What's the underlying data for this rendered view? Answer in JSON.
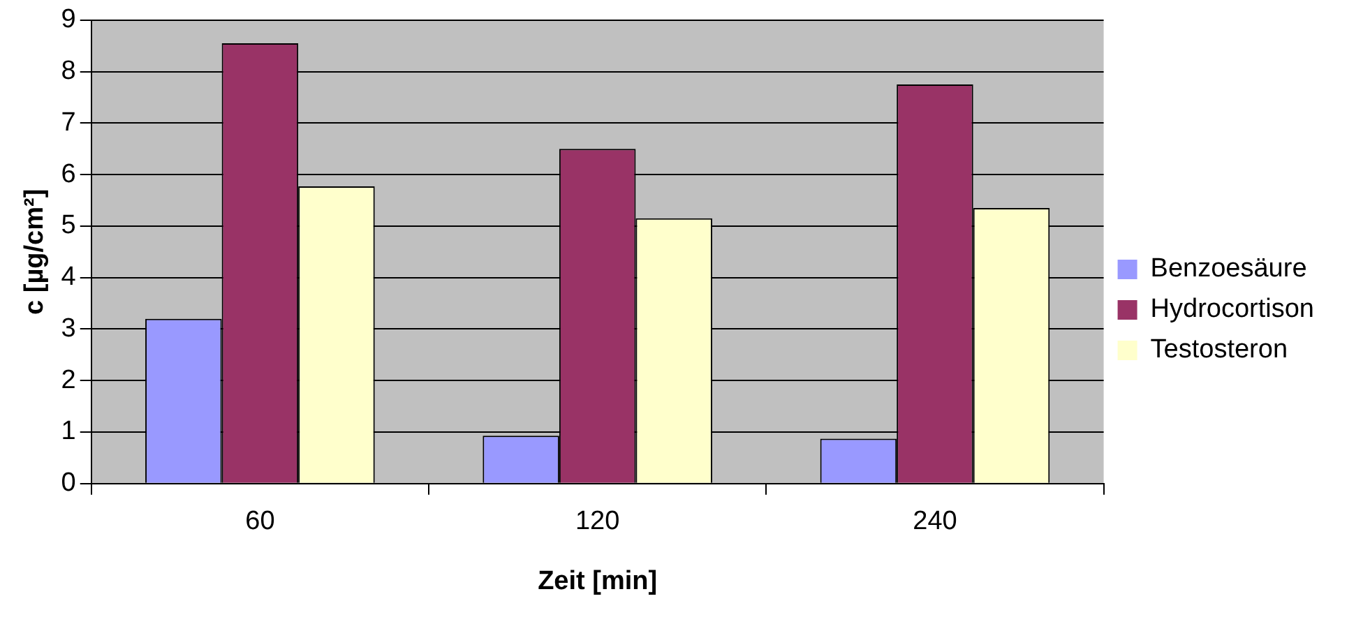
{
  "chart_data": {
    "type": "bar",
    "xlabel": "Zeit [min]",
    "ylabel": "c [µg/cm²]",
    "categories": [
      "60",
      "120",
      "240"
    ],
    "series": [
      {
        "name": "Benzoesäure",
        "color": "#9999ff",
        "values": [
          3.2,
          0.93,
          0.87
        ]
      },
      {
        "name": "Hydrocortison",
        "color": "#993366",
        "values": [
          8.55,
          6.5,
          7.75
        ]
      },
      {
        "name": "Testosteron",
        "color": "#ffffcc",
        "values": [
          5.77,
          5.15,
          5.35
        ]
      }
    ],
    "ylim": [
      0,
      9
    ],
    "yticks": [
      0,
      1,
      2,
      3,
      4,
      5,
      6,
      7,
      8,
      9
    ],
    "grid": "y",
    "legend": "right"
  }
}
